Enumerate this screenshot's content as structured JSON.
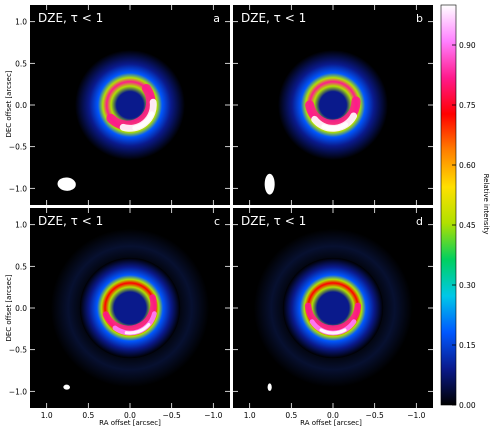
{
  "chart_data": {
    "type": "heatmap",
    "panels": [
      {
        "letter": "a",
        "title": "DZE,  τ < 1",
        "beam": {
          "major": 0.22,
          "minor": 0.16,
          "pa_deg": 95
        },
        "ring": {
          "radius_arcsec": 0.28,
          "width_arcsec": 0.1,
          "peak_rel": 1.0,
          "peak_pa_deg": 220
        }
      },
      {
        "letter": "b",
        "title": "DZE,  τ < 1",
        "beam": {
          "major": 0.25,
          "minor": 0.12,
          "pa_deg": 0
        },
        "ring": {
          "radius_arcsec": 0.28,
          "width_arcsec": 0.1,
          "peak_rel": 0.97,
          "peak_pa_deg": 185
        }
      },
      {
        "letter": "c",
        "title": "DZE,  τ < 1",
        "beam": {
          "major": 0.08,
          "minor": 0.06,
          "pa_deg": 95
        },
        "ring": {
          "radius_arcsec": 0.3,
          "width_arcsec": 0.07,
          "peak_rel": 0.95,
          "peak_pa_deg": 200
        }
      },
      {
        "letter": "d",
        "title": "DZE,  τ < 1",
        "beam": {
          "major": 0.09,
          "minor": 0.05,
          "pa_deg": 0
        },
        "ring": {
          "radius_arcsec": 0.3,
          "width_arcsec": 0.07,
          "peak_rel": 0.93,
          "peak_pa_deg": 180
        }
      }
    ],
    "x_axis": {
      "label": "RA offset [arcsec]",
      "range": [
        1.2,
        -1.2
      ],
      "ticks": [
        1.0,
        0.5,
        0.0,
        -0.5,
        -1.0
      ],
      "tick_labels": [
        "1.0",
        "0.5",
        "0.0",
        "−0.5",
        "−1.0"
      ]
    },
    "y_axis": {
      "label": "DEC offset [arcsec]",
      "range": [
        -1.2,
        1.2
      ],
      "ticks": [
        1.0,
        0.5,
        0.0,
        -0.5,
        -1.0
      ],
      "tick_labels": [
        "1.0",
        "0.5",
        "0.0",
        "−0.5",
        "−1.0"
      ]
    },
    "colorbar": {
      "label": "Relative intensity",
      "range": [
        0.0,
        1.0
      ],
      "ticks": [
        0.0,
        0.15,
        0.3,
        0.45,
        0.6,
        0.75,
        0.9
      ],
      "tick_labels": [
        "0.00",
        "0.15",
        "0.30",
        "0.45",
        "0.60",
        "0.75",
        "0.90"
      ],
      "colors": [
        "#000000",
        "#0a1a8c",
        "#0058ff",
        "#00c8e8",
        "#00d060",
        "#b0e000",
        "#ffe000",
        "#ff8000",
        "#ff0000",
        "#ff1a8c",
        "#ff80ff",
        "#ffffff"
      ]
    }
  }
}
